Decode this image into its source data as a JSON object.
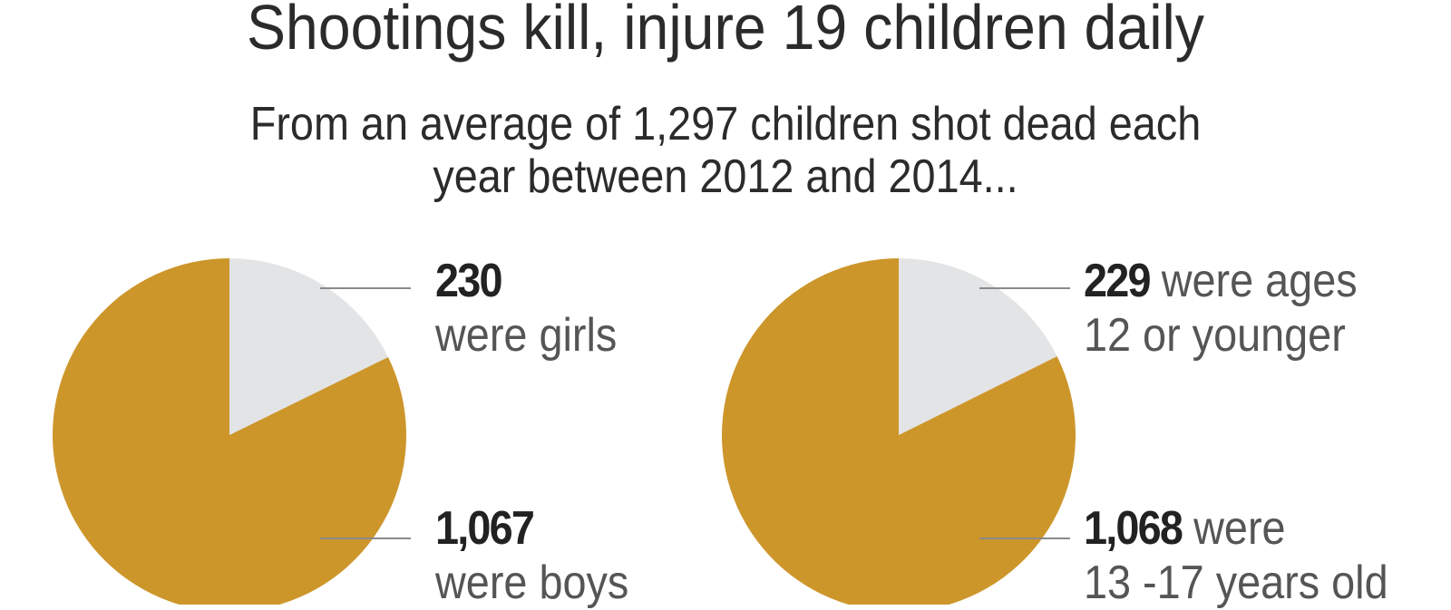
{
  "title": "Shootings kill, injure 19 children daily",
  "subtitle": {
    "line1": "From an average of 1,297 children shot dead each",
    "line2": "year between 2012 and 2014..."
  },
  "colors": {
    "major": "#CD962B",
    "minor": "#E3E4E6",
    "leader": "#8A8A8A"
  },
  "chart_data": [
    {
      "type": "pie",
      "title": "",
      "slices": [
        {
          "label": "were girls",
          "value": 230,
          "value_text": "230",
          "color": "#E3E4E6"
        },
        {
          "label": "were boys",
          "value": 1067,
          "value_text": "1,067",
          "color": "#CD962B"
        }
      ]
    },
    {
      "type": "pie",
      "title": "",
      "slices": [
        {
          "label": "were ages",
          "label2": "12 or younger",
          "value": 229,
          "value_text": "229",
          "color": "#E3E4E6"
        },
        {
          "label": "were",
          "label2": "13 -17 years old",
          "value": 1068,
          "value_text": "1,068",
          "color": "#CD962B"
        }
      ]
    }
  ]
}
